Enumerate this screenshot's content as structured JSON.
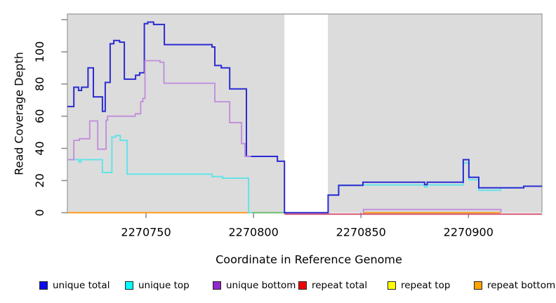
{
  "figure": {
    "page_bg": "#ffffff",
    "plot_bg": "#DCDCDC",
    "plot_border_color": "#A6A6A6",
    "tick_color": "#8E8E8E",
    "masked_band_color": "#ffffff"
  },
  "axes": {
    "x_title": "Coordinate in Reference Genome",
    "y_title": "Read Coverage Depth"
  },
  "legend": {
    "items": [
      {
        "label": "unique total",
        "color": "#0B0BF0"
      },
      {
        "label": "unique top",
        "color": "#00FFFF"
      },
      {
        "label": "unique bottom",
        "color": "#9327CE"
      },
      {
        "label": "repeat total",
        "color": "#F00000"
      },
      {
        "label": "repeat top",
        "color": "#FFFF00"
      },
      {
        "label": "repeat bottom",
        "color": "#FFA500"
      }
    ],
    "item_x": [
      56,
      178,
      303,
      425,
      552,
      675
    ]
  },
  "chart_data": {
    "type": "step-line",
    "title": "",
    "xlabel": "Coordinate in Reference Genome",
    "ylabel": "Read Coverage Depth",
    "xlim": [
      2270713.4,
      2270934.2
    ],
    "ylim": [
      0,
      123.5
    ],
    "x_ticks": [
      {
        "v": 2270750,
        "label": "2270750"
      },
      {
        "v": 2270800,
        "label": "2270800"
      },
      {
        "v": 2270850,
        "label": "2270850"
      },
      {
        "v": 2270900,
        "label": "2270900"
      }
    ],
    "y_ticks": [
      {
        "v": 0,
        "label": "0"
      },
      {
        "v": 20,
        "label": "20"
      },
      {
        "v": 40,
        "label": "40"
      },
      {
        "v": 60,
        "label": "60"
      },
      {
        "v": 80,
        "label": "80"
      },
      {
        "v": 100,
        "label": "100"
      },
      {
        "v": 120,
        "label": ""
      }
    ],
    "masked_region": {
      "x0": 2270814.4,
      "x1": 2270834.6
    },
    "overlap_segments": [
      {
        "x0": 2270799.5,
        "x1": 2270815.2,
        "y": 0,
        "color": "#6FBF73"
      }
    ],
    "series": [
      {
        "name": "repeat total",
        "color": "#D04A6B",
        "width": 1.8,
        "dy": 2,
        "hidden": false,
        "segments": [
          [
            [
              2270814.4,
              0
            ],
            [
              2270934.2,
              0
            ]
          ]
        ]
      },
      {
        "name": "repeat top",
        "color": "#FFFF00",
        "width": 2,
        "dy": 0,
        "hidden": true,
        "segments": [
          [
            [
              2270713.4,
              0
            ],
            [
              2270934.2,
              0
            ]
          ]
        ]
      },
      {
        "name": "repeat bottom",
        "color": "#FF9D1E",
        "width": 2,
        "dy": 0,
        "hidden": false,
        "segments": [
          [
            [
              2270713.4,
              0
            ],
            [
              2270799.5,
              0
            ]
          ],
          [
            [
              2270850.9,
              0
            ],
            [
              2270914.9,
              0
            ]
          ]
        ]
      },
      {
        "name": "unique top",
        "color": "#63E3E8",
        "width": 2,
        "dy": 0,
        "hidden": false,
        "segments": [
          [
            [
              2270713.4,
              33
            ],
            [
              2270718.9,
              31.5
            ],
            [
              2270719.7,
              33
            ],
            [
              2270729.7,
              25
            ],
            [
              2270734.1,
              47
            ],
            [
              2270736,
              48
            ],
            [
              2270738,
              45
            ],
            [
              2270741.2,
              24
            ],
            [
              2270780.7,
              22.5
            ],
            [
              2270785.6,
              21.5
            ],
            [
              2270797.7,
              0
            ],
            [
              2270799.5,
              0
            ]
          ],
          [
            [
              2270834.7,
              11
            ],
            [
              2270839.6,
              17
            ],
            [
              2270850.9,
              17.3
            ],
            [
              2270879.6,
              16
            ],
            [
              2270880.8,
              17.3
            ],
            [
              2270897.6,
              31
            ],
            [
              2270900.2,
              20.5
            ],
            [
              2270904.8,
              14
            ],
            [
              2270915,
              15.5
            ],
            [
              2270925.7,
              16.5
            ],
            [
              2270934.2,
              16.5
            ]
          ]
        ]
      },
      {
        "name": "unique total",
        "color": "#2B2BD2",
        "width": 2,
        "dy": 0,
        "hidden": false,
        "segments": [
          [
            [
              2270713.4,
              66
            ],
            [
              2270716.4,
              78
            ],
            [
              2270718.6,
              76
            ],
            [
              2270720,
              78
            ],
            [
              2270723,
              90
            ],
            [
              2270725.5,
              72
            ],
            [
              2270729.7,
              63
            ],
            [
              2270731,
              81
            ],
            [
              2270733.3,
              105
            ],
            [
              2270735,
              107
            ],
            [
              2270737.7,
              106
            ],
            [
              2270739.9,
              83
            ],
            [
              2270745.1,
              85.5
            ],
            [
              2270747,
              87
            ],
            [
              2270749.2,
              117.5
            ],
            [
              2270750.8,
              118.5
            ],
            [
              2270753.5,
              117
            ],
            [
              2270758.5,
              104.5
            ],
            [
              2270780.7,
              103
            ],
            [
              2270782,
              91.5
            ],
            [
              2270785,
              90
            ],
            [
              2270788.9,
              77
            ],
            [
              2270796.7,
              35
            ],
            [
              2270811.1,
              32
            ],
            [
              2270814.4,
              0
            ],
            [
              2270834.7,
              11
            ],
            [
              2270839.6,
              17
            ],
            [
              2270850.9,
              19
            ],
            [
              2270879.6,
              17.5
            ],
            [
              2270880.8,
              19
            ],
            [
              2270897.6,
              33
            ],
            [
              2270900.2,
              22
            ],
            [
              2270904.8,
              15.5
            ],
            [
              2270925.7,
              16.5
            ],
            [
              2270934.2,
              16.5
            ]
          ]
        ]
      },
      {
        "name": "unique bottom",
        "color": "#C08BDC",
        "width": 1.8,
        "dy": 0,
        "hidden": false,
        "segments": [
          [
            [
              2270713.4,
              33
            ],
            [
              2270716.4,
              45
            ],
            [
              2270719,
              46
            ],
            [
              2270723.8,
              57
            ],
            [
              2270727.5,
              39.5
            ],
            [
              2270731.4,
              57.5
            ],
            [
              2270732.1,
              60
            ],
            [
              2270745,
              61.5
            ],
            [
              2270747.5,
              69
            ],
            [
              2270748.5,
              71
            ],
            [
              2270749.5,
              94.5
            ],
            [
              2270756.5,
              93.5
            ],
            [
              2270758.3,
              80.5
            ],
            [
              2270782,
              69
            ],
            [
              2270788.9,
              56
            ],
            [
              2270794.4,
              43
            ],
            [
              2270796,
              35
            ],
            [
              2270798.8,
              35
            ]
          ],
          [
            [
              2270850.9,
              0
            ],
            [
              2270851.1,
              2
            ],
            [
              2270914.9,
              2
            ],
            [
              2270915.1,
              0
            ]
          ]
        ]
      }
    ]
  }
}
